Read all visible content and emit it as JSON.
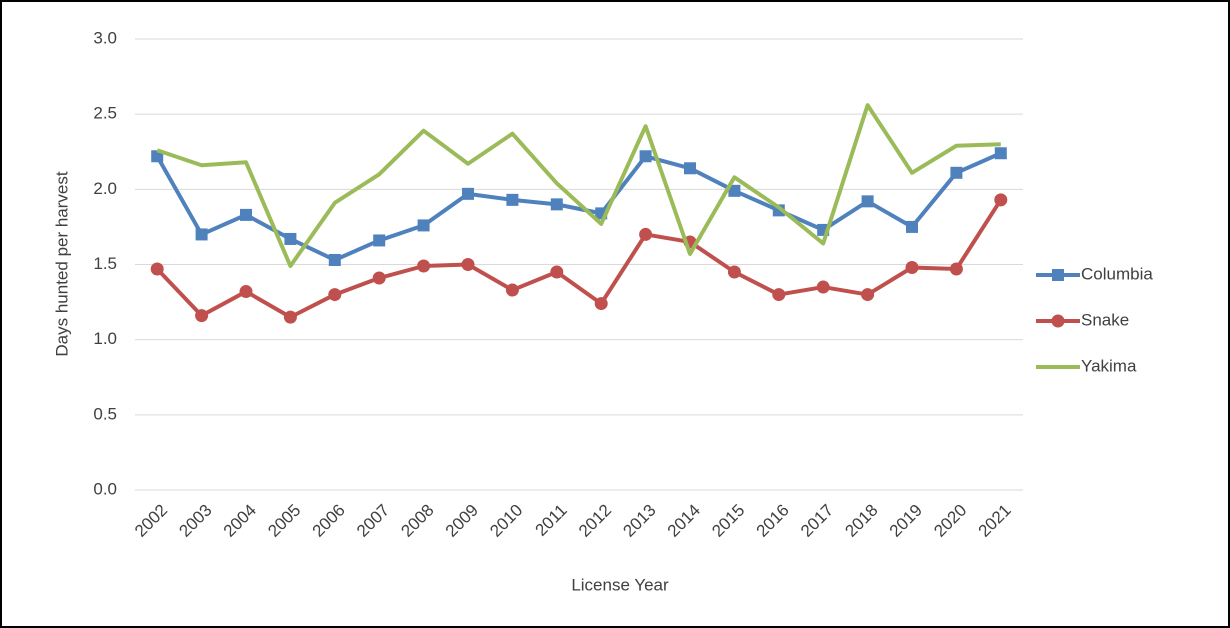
{
  "chart_data": {
    "type": "line",
    "x_label": "License Year",
    "y_label": "Days hunted per harvest",
    "categories": [
      "2002",
      "2003",
      "2004",
      "2005",
      "2006",
      "2007",
      "2008",
      "2009",
      "2010",
      "2011",
      "2012",
      "2013",
      "2014",
      "2015",
      "2016",
      "2017",
      "2018",
      "2019",
      "2020",
      "2021"
    ],
    "series": [
      {
        "name": "Columbia",
        "color": "#4f81bd",
        "marker": "square",
        "values": [
          2.22,
          1.7,
          1.83,
          1.67,
          1.53,
          1.66,
          1.76,
          1.97,
          1.93,
          1.9,
          1.84,
          2.22,
          2.14,
          1.99,
          1.86,
          1.73,
          1.92,
          1.75,
          2.11,
          2.24
        ]
      },
      {
        "name": "Snake",
        "color": "#c0504d",
        "marker": "circle",
        "values": [
          1.47,
          1.16,
          1.32,
          1.15,
          1.3,
          1.41,
          1.49,
          1.5,
          1.33,
          1.45,
          1.24,
          1.7,
          1.65,
          1.45,
          1.3,
          1.35,
          1.3,
          1.48,
          1.47,
          1.93
        ]
      },
      {
        "name": "Yakima",
        "color": "#9bbb59",
        "marker": "none",
        "values": [
          2.26,
          2.16,
          2.18,
          1.49,
          1.91,
          2.1,
          2.39,
          2.17,
          2.37,
          2.04,
          1.77,
          2.42,
          1.57,
          2.08,
          1.88,
          1.64,
          2.56,
          2.11,
          2.29,
          2.3
        ]
      }
    ],
    "ylim": [
      0,
      3
    ],
    "yticks": [
      {
        "value": 0,
        "label": "0.0"
      },
      0.5,
      {
        "value": 1,
        "label": "1.0"
      },
      1.5,
      {
        "value": 2,
        "label": "2.0"
      },
      2.5,
      {
        "value": 3,
        "label": "3.0"
      }
    ],
    "grid": true,
    "legend": "right"
  }
}
